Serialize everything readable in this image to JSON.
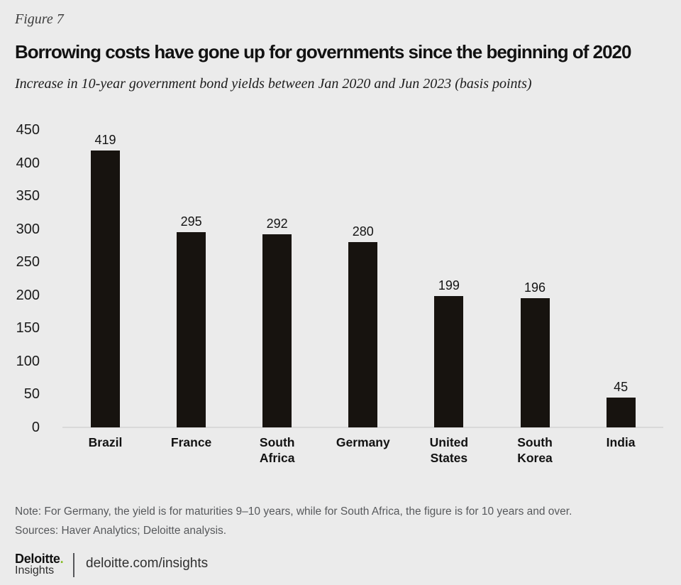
{
  "figure_label": "Figure 7",
  "title": "Borrowing costs have gone up for governments since the beginning of 2020",
  "subtitle": "Increase in 10-year government bond yields between Jan 2020 and Jun 2023 (basis points)",
  "chart_data": {
    "type": "bar",
    "categories": [
      "Brazil",
      "France",
      "South\nAfrica",
      "Germany",
      "United\nStates",
      "South\nKorea",
      "India"
    ],
    "values": [
      419,
      295,
      292,
      280,
      199,
      196,
      45
    ],
    "title": "Borrowing costs have gone up for governments since the beginning of 2020",
    "xlabel": "",
    "ylabel": "",
    "ylim": [
      0,
      450
    ],
    "ytick_step": 50,
    "grid": false,
    "legend": "none",
    "value_labels": true
  },
  "notes": {
    "note": "Note: For Germany, the yield is for maturities 9–10 years, while for South Africa, the figure is for 10 years and over.",
    "sources": "Sources: Haver Analytics; Deloitte analysis."
  },
  "footer": {
    "brand": "Deloitte",
    "brand_dot": ".",
    "brand_sub": "Insights",
    "url": "deloitte.com/insights"
  },
  "colors": {
    "background": "#ebebeb",
    "bar": "#17130f",
    "accent_green": "#86bc25",
    "axis_line": "#d9d9d9",
    "note_text": "#57595c",
    "divider": "#55565a"
  }
}
